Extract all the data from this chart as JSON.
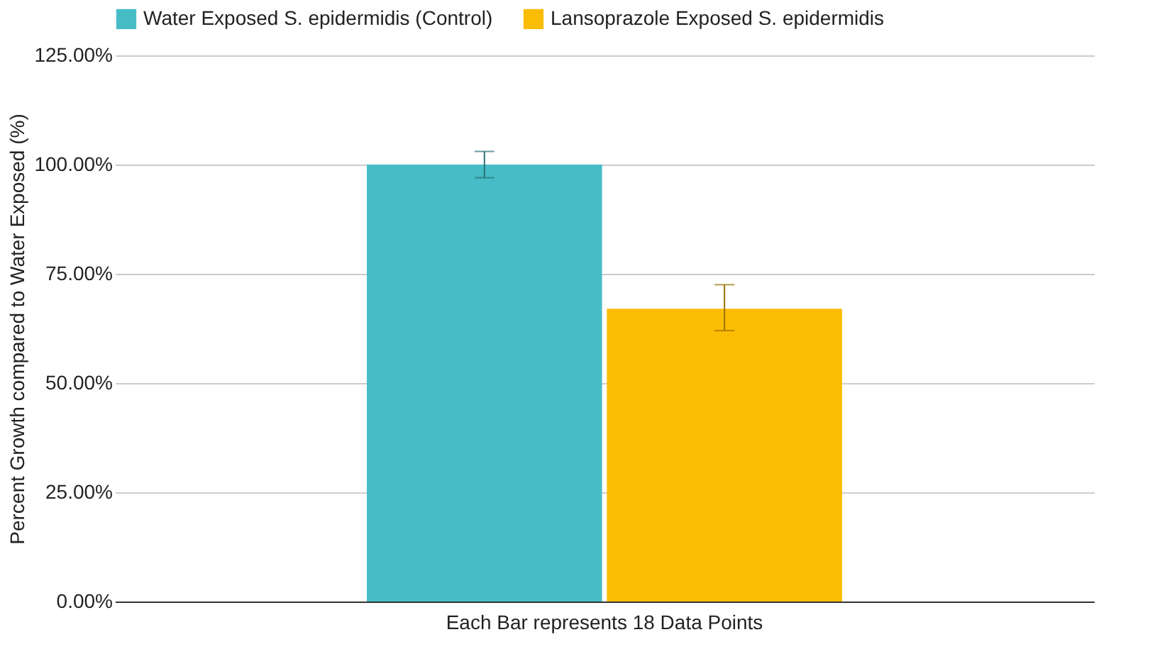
{
  "chart_data": {
    "type": "bar",
    "xlabel": null,
    "ylabel": "Percent Growth compared to Water Exposed (%)",
    "categories": [
      "Each Bar represents 18 Data Points"
    ],
    "series": [
      {
        "name": "Water Exposed S. epidermidis (Control)",
        "color": "#46bdc6",
        "values": [
          100
        ],
        "errors": [
          3
        ]
      },
      {
        "name": "Lansoprazole Exposed S. epidermidis",
        "color": "#fbbc04",
        "values": [
          67
        ],
        "errors": [
          [
            62,
            72.5
          ]
        ]
      }
    ],
    "ylim": [
      0,
      125
    ],
    "yticks": [
      {
        "value": 0,
        "label": "0.00%"
      },
      {
        "value": 25,
        "label": "25.00%"
      },
      {
        "value": 50,
        "label": "50.00%"
      },
      {
        "value": 75,
        "label": "75.00%"
      },
      {
        "value": 100,
        "label": "100.00%"
      },
      {
        "value": 125,
        "label": "125.00%"
      }
    ],
    "grid": "y",
    "legend": "top"
  }
}
